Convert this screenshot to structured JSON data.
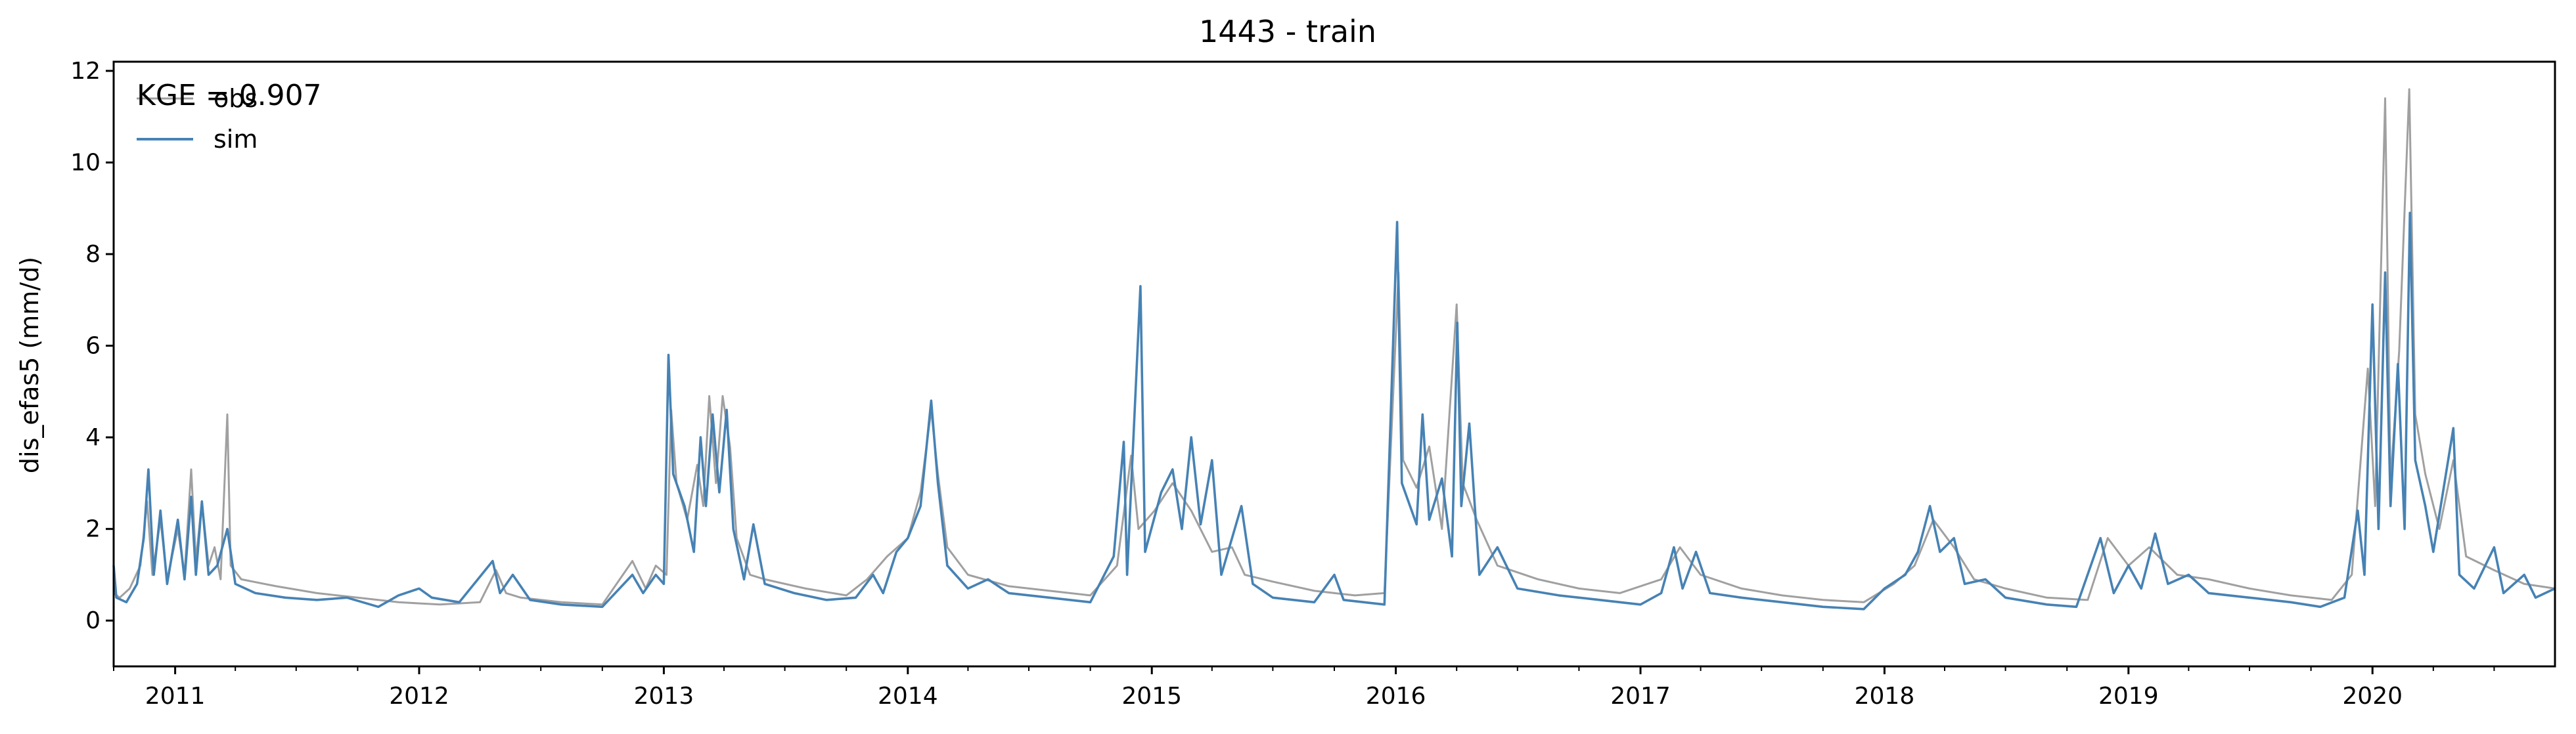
{
  "chart_data": {
    "type": "line",
    "title": "1443 - train",
    "ylabel": "dis_efas5 (mm/d)",
    "xlabel": "",
    "xlim": [
      "2010-10-01",
      "2020-09-30"
    ],
    "ylim": [
      -1,
      12.2
    ],
    "yticks": [
      0,
      2,
      4,
      6,
      8,
      10,
      12
    ],
    "xticks": [
      "2011",
      "2012",
      "2013",
      "2014",
      "2015",
      "2016",
      "2017",
      "2018",
      "2019",
      "2020"
    ],
    "annotation": "KGE = 0.907",
    "legend_position": "upper-left",
    "grid": false,
    "series": [
      {
        "name": "obs",
        "color": "#a0a0a0",
        "points": [
          [
            "2010-10-01",
            0.6
          ],
          [
            "2010-10-10",
            0.5
          ],
          [
            "2010-10-25",
            0.7
          ],
          [
            "2010-11-10",
            1.2
          ],
          [
            "2010-11-20",
            2.6
          ],
          [
            "2010-11-28",
            1.0
          ],
          [
            "2010-12-10",
            2.2
          ],
          [
            "2010-12-20",
            0.9
          ],
          [
            "2011-01-05",
            2.0
          ],
          [
            "2011-01-15",
            1.0
          ],
          [
            "2011-01-25",
            3.3
          ],
          [
            "2011-02-01",
            1.3
          ],
          [
            "2011-02-10",
            2.6
          ],
          [
            "2011-02-20",
            1.2
          ],
          [
            "2011-03-01",
            1.6
          ],
          [
            "2011-03-10",
            0.9
          ],
          [
            "2011-03-20",
            4.5
          ],
          [
            "2011-03-25",
            1.2
          ],
          [
            "2011-04-10",
            0.9
          ],
          [
            "2011-06-01",
            0.75
          ],
          [
            "2011-08-01",
            0.6
          ],
          [
            "2011-10-01",
            0.5
          ],
          [
            "2011-12-01",
            0.4
          ],
          [
            "2012-02-01",
            0.35
          ],
          [
            "2012-04-01",
            0.4
          ],
          [
            "2012-04-25",
            1.1
          ],
          [
            "2012-05-10",
            0.6
          ],
          [
            "2012-06-01",
            0.5
          ],
          [
            "2012-08-01",
            0.4
          ],
          [
            "2012-10-01",
            0.35
          ],
          [
            "2012-11-15",
            1.3
          ],
          [
            "2012-12-05",
            0.7
          ],
          [
            "2012-12-20",
            1.2
          ],
          [
            "2013-01-05",
            1.0
          ],
          [
            "2013-01-12",
            4.6
          ],
          [
            "2013-01-20",
            3.0
          ],
          [
            "2013-02-05",
            2.2
          ],
          [
            "2013-02-20",
            3.4
          ],
          [
            "2013-03-01",
            2.5
          ],
          [
            "2013-03-10",
            4.9
          ],
          [
            "2013-03-20",
            3.0
          ],
          [
            "2013-03-30",
            4.9
          ],
          [
            "2013-04-10",
            3.8
          ],
          [
            "2013-04-20",
            1.8
          ],
          [
            "2013-05-10",
            1.0
          ],
          [
            "2013-06-01",
            0.9
          ],
          [
            "2013-08-01",
            0.7
          ],
          [
            "2013-10-01",
            0.55
          ],
          [
            "2013-11-01",
            0.9
          ],
          [
            "2013-12-01",
            1.4
          ],
          [
            "2014-01-01",
            1.8
          ],
          [
            "2014-01-20",
            2.8
          ],
          [
            "2014-02-05",
            4.6
          ],
          [
            "2014-02-15",
            3.2
          ],
          [
            "2014-03-01",
            1.6
          ],
          [
            "2014-04-01",
            1.0
          ],
          [
            "2014-06-01",
            0.75
          ],
          [
            "2014-08-01",
            0.65
          ],
          [
            "2014-10-01",
            0.55
          ],
          [
            "2014-11-10",
            1.2
          ],
          [
            "2014-12-01",
            3.6
          ],
          [
            "2014-12-12",
            2.0
          ],
          [
            "2015-01-05",
            2.4
          ],
          [
            "2015-02-01",
            3.0
          ],
          [
            "2015-03-01",
            2.4
          ],
          [
            "2015-04-01",
            1.5
          ],
          [
            "2015-05-01",
            1.6
          ],
          [
            "2015-05-20",
            1.0
          ],
          [
            "2015-07-01",
            0.85
          ],
          [
            "2015-09-01",
            0.65
          ],
          [
            "2015-11-01",
            0.55
          ],
          [
            "2015-12-15",
            0.6
          ],
          [
            "2016-01-05",
            7.6
          ],
          [
            "2016-01-12",
            3.5
          ],
          [
            "2016-02-01",
            2.9
          ],
          [
            "2016-02-20",
            3.8
          ],
          [
            "2016-03-10",
            2.0
          ],
          [
            "2016-04-01",
            6.9
          ],
          [
            "2016-04-10",
            3.0
          ],
          [
            "2016-05-01",
            2.2
          ],
          [
            "2016-06-01",
            1.2
          ],
          [
            "2016-08-01",
            0.9
          ],
          [
            "2016-10-01",
            0.7
          ],
          [
            "2016-12-01",
            0.6
          ],
          [
            "2017-02-01",
            0.9
          ],
          [
            "2017-03-01",
            1.6
          ],
          [
            "2017-04-01",
            1.0
          ],
          [
            "2017-06-01",
            0.7
          ],
          [
            "2017-08-01",
            0.55
          ],
          [
            "2017-10-01",
            0.45
          ],
          [
            "2017-12-01",
            0.4
          ],
          [
            "2018-01-15",
            0.8
          ],
          [
            "2018-02-15",
            1.2
          ],
          [
            "2018-03-15",
            2.2
          ],
          [
            "2018-04-15",
            1.6
          ],
          [
            "2018-05-15",
            0.9
          ],
          [
            "2018-07-01",
            0.7
          ],
          [
            "2018-09-01",
            0.5
          ],
          [
            "2018-11-01",
            0.45
          ],
          [
            "2018-12-01",
            1.8
          ],
          [
            "2019-01-01",
            1.2
          ],
          [
            "2019-02-01",
            1.6
          ],
          [
            "2019-03-15",
            1.0
          ],
          [
            "2019-05-01",
            0.9
          ],
          [
            "2019-07-01",
            0.7
          ],
          [
            "2019-09-01",
            0.55
          ],
          [
            "2019-11-01",
            0.45
          ],
          [
            "2019-12-01",
            1.0
          ],
          [
            "2019-12-25",
            5.5
          ],
          [
            "2020-01-05",
            2.5
          ],
          [
            "2020-01-20",
            11.4
          ],
          [
            "2020-01-28",
            3.0
          ],
          [
            "2020-02-10",
            5.9
          ],
          [
            "2020-02-25",
            11.6
          ],
          [
            "2020-03-05",
            4.5
          ],
          [
            "2020-03-20",
            3.2
          ],
          [
            "2020-04-10",
            2.0
          ],
          [
            "2020-05-01",
            3.5
          ],
          [
            "2020-05-20",
            1.4
          ],
          [
            "2020-07-01",
            1.1
          ],
          [
            "2020-08-15",
            0.8
          ],
          [
            "2020-09-30",
            0.7
          ]
        ]
      },
      {
        "name": "sim",
        "color": "#4682b4",
        "points": [
          [
            "2010-10-01",
            1.2
          ],
          [
            "2010-10-05",
            0.5
          ],
          [
            "2010-10-20",
            0.4
          ],
          [
            "2010-11-05",
            0.8
          ],
          [
            "2010-11-15",
            1.8
          ],
          [
            "2010-11-22",
            3.3
          ],
          [
            "2010-11-30",
            1.0
          ],
          [
            "2010-12-10",
            2.4
          ],
          [
            "2010-12-20",
            0.8
          ],
          [
            "2011-01-05",
            2.2
          ],
          [
            "2011-01-15",
            0.9
          ],
          [
            "2011-01-25",
            2.7
          ],
          [
            "2011-02-01",
            1.0
          ],
          [
            "2011-02-10",
            2.6
          ],
          [
            "2011-02-20",
            1.0
          ],
          [
            "2011-03-05",
            1.2
          ],
          [
            "2011-03-20",
            2.0
          ],
          [
            "2011-04-01",
            0.8
          ],
          [
            "2011-05-01",
            0.6
          ],
          [
            "2011-06-15",
            0.5
          ],
          [
            "2011-08-01",
            0.45
          ],
          [
            "2011-09-15",
            0.5
          ],
          [
            "2011-11-01",
            0.3
          ],
          [
            "2011-12-01",
            0.55
          ],
          [
            "2012-01-01",
            0.7
          ],
          [
            "2012-01-20",
            0.5
          ],
          [
            "2012-03-01",
            0.4
          ],
          [
            "2012-04-20",
            1.3
          ],
          [
            "2012-05-01",
            0.6
          ],
          [
            "2012-05-20",
            1.0
          ],
          [
            "2012-06-15",
            0.45
          ],
          [
            "2012-08-01",
            0.35
          ],
          [
            "2012-10-01",
            0.3
          ],
          [
            "2012-11-15",
            1.0
          ],
          [
            "2012-12-01",
            0.6
          ],
          [
            "2012-12-20",
            1.0
          ],
          [
            "2013-01-01",
            0.8
          ],
          [
            "2013-01-08",
            5.8
          ],
          [
            "2013-01-15",
            3.2
          ],
          [
            "2013-02-01",
            2.5
          ],
          [
            "2013-02-15",
            1.5
          ],
          [
            "2013-02-25",
            4.0
          ],
          [
            "2013-03-05",
            2.5
          ],
          [
            "2013-03-15",
            4.5
          ],
          [
            "2013-03-25",
            2.8
          ],
          [
            "2013-04-05",
            4.6
          ],
          [
            "2013-04-15",
            2.0
          ],
          [
            "2013-05-01",
            0.9
          ],
          [
            "2013-05-15",
            2.1
          ],
          [
            "2013-06-01",
            0.8
          ],
          [
            "2013-07-15",
            0.6
          ],
          [
            "2013-09-01",
            0.45
          ],
          [
            "2013-10-15",
            0.5
          ],
          [
            "2013-11-10",
            1.0
          ],
          [
            "2013-11-25",
            0.6
          ],
          [
            "2013-12-15",
            1.5
          ],
          [
            "2014-01-01",
            1.8
          ],
          [
            "2014-01-20",
            2.5
          ],
          [
            "2014-02-05",
            4.8
          ],
          [
            "2014-02-15",
            3.0
          ],
          [
            "2014-03-01",
            1.2
          ],
          [
            "2014-04-01",
            0.7
          ],
          [
            "2014-05-01",
            0.9
          ],
          [
            "2014-06-01",
            0.6
          ],
          [
            "2014-08-01",
            0.5
          ],
          [
            "2014-10-01",
            0.4
          ],
          [
            "2014-11-05",
            1.4
          ],
          [
            "2014-11-20",
            3.9
          ],
          [
            "2014-11-25",
            1.0
          ],
          [
            "2014-12-15",
            7.3
          ],
          [
            "2014-12-22",
            1.5
          ],
          [
            "2015-01-15",
            2.8
          ],
          [
            "2015-02-01",
            3.3
          ],
          [
            "2015-02-15",
            2.0
          ],
          [
            "2015-03-01",
            4.0
          ],
          [
            "2015-03-15",
            2.1
          ],
          [
            "2015-04-01",
            3.5
          ],
          [
            "2015-04-15",
            1.0
          ],
          [
            "2015-05-15",
            2.5
          ],
          [
            "2015-06-01",
            0.8
          ],
          [
            "2015-07-01",
            0.5
          ],
          [
            "2015-09-01",
            0.4
          ],
          [
            "2015-10-01",
            1.0
          ],
          [
            "2015-10-15",
            0.45
          ],
          [
            "2015-12-15",
            0.35
          ],
          [
            "2016-01-03",
            8.7
          ],
          [
            "2016-01-10",
            3.0
          ],
          [
            "2016-02-01",
            2.1
          ],
          [
            "2016-02-10",
            4.5
          ],
          [
            "2016-02-20",
            2.2
          ],
          [
            "2016-03-10",
            3.1
          ],
          [
            "2016-03-25",
            1.4
          ],
          [
            "2016-04-02",
            6.5
          ],
          [
            "2016-04-08",
            2.5
          ],
          [
            "2016-04-20",
            4.3
          ],
          [
            "2016-05-05",
            1.0
          ],
          [
            "2016-06-01",
            1.6
          ],
          [
            "2016-07-01",
            0.7
          ],
          [
            "2016-09-01",
            0.55
          ],
          [
            "2016-11-01",
            0.45
          ],
          [
            "2017-01-01",
            0.35
          ],
          [
            "2017-02-01",
            0.6
          ],
          [
            "2017-02-20",
            1.6
          ],
          [
            "2017-03-05",
            0.7
          ],
          [
            "2017-03-25",
            1.5
          ],
          [
            "2017-04-15",
            0.6
          ],
          [
            "2017-06-01",
            0.5
          ],
          [
            "2017-08-01",
            0.4
          ],
          [
            "2017-10-01",
            0.3
          ],
          [
            "2017-12-01",
            0.25
          ],
          [
            "2018-01-01",
            0.7
          ],
          [
            "2018-02-01",
            1.0
          ],
          [
            "2018-02-20",
            1.5
          ],
          [
            "2018-03-10",
            2.5
          ],
          [
            "2018-03-25",
            1.5
          ],
          [
            "2018-04-15",
            1.8
          ],
          [
            "2018-05-01",
            0.8
          ],
          [
            "2018-06-01",
            0.9
          ],
          [
            "2018-07-01",
            0.5
          ],
          [
            "2018-09-01",
            0.35
          ],
          [
            "2018-10-15",
            0.3
          ],
          [
            "2018-11-20",
            1.8
          ],
          [
            "2018-12-10",
            0.6
          ],
          [
            "2019-01-01",
            1.2
          ],
          [
            "2019-01-20",
            0.7
          ],
          [
            "2019-02-10",
            1.9
          ],
          [
            "2019-03-01",
            0.8
          ],
          [
            "2019-04-01",
            1.0
          ],
          [
            "2019-05-01",
            0.6
          ],
          [
            "2019-07-01",
            0.5
          ],
          [
            "2019-09-01",
            0.4
          ],
          [
            "2019-10-15",
            0.3
          ],
          [
            "2019-11-20",
            0.5
          ],
          [
            "2019-12-10",
            2.4
          ],
          [
            "2019-12-20",
            1.0
          ],
          [
            "2020-01-01",
            6.9
          ],
          [
            "2020-01-10",
            2.0
          ],
          [
            "2020-01-20",
            7.6
          ],
          [
            "2020-01-28",
            2.5
          ],
          [
            "2020-02-08",
            5.6
          ],
          [
            "2020-02-18",
            2.0
          ],
          [
            "2020-02-26",
            8.9
          ],
          [
            "2020-03-05",
            3.5
          ],
          [
            "2020-03-20",
            2.5
          ],
          [
            "2020-04-01",
            1.5
          ],
          [
            "2020-05-01",
            4.2
          ],
          [
            "2020-05-10",
            1.0
          ],
          [
            "2020-06-01",
            0.7
          ],
          [
            "2020-07-01",
            1.6
          ],
          [
            "2020-07-15",
            0.6
          ],
          [
            "2020-08-15",
            1.0
          ],
          [
            "2020-09-01",
            0.5
          ],
          [
            "2020-09-30",
            0.7
          ]
        ]
      }
    ]
  }
}
